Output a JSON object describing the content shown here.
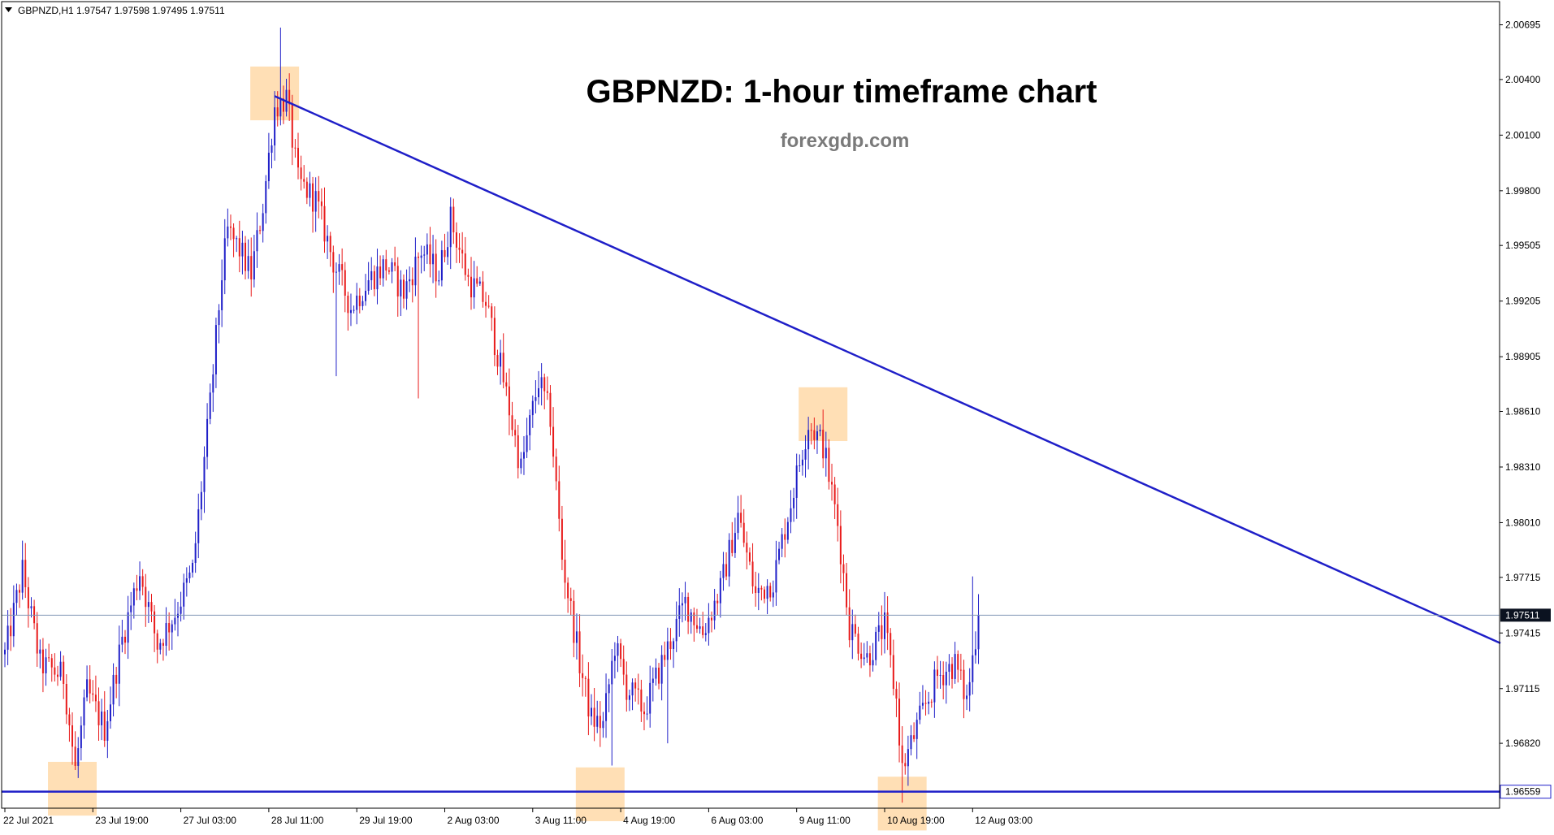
{
  "header": {
    "symbol_info": "GBPNZD,H1  1.97547 1.97598 1.97495 1.97511"
  },
  "overlay": {
    "title": "GBPNZD: 1-hour timeframe chart",
    "watermark": "forexgdp.com"
  },
  "colors": {
    "bull": "#1f1fc8",
    "bear": "#e81a1a",
    "trendline": "#1f1fc8",
    "support": "#1f1fc8",
    "highlight": "#ffd9a8",
    "current_price_line": "#7f96b4",
    "current_price_tag_bg": "#0b1220"
  },
  "chart_data": {
    "type": "candlestick",
    "symbol": "GBPNZD",
    "timeframe": "H1",
    "current_price": 1.97511,
    "current_price_label": "1.97511",
    "ylim": [
      1.9647,
      2.0082
    ],
    "y_ticks": [
      {
        "value": 2.00695,
        "label": "2.00695"
      },
      {
        "value": 2.004,
        "label": "2.00400"
      },
      {
        "value": 2.001,
        "label": "2.00100"
      },
      {
        "value": 1.998,
        "label": "1.99800"
      },
      {
        "value": 1.99505,
        "label": "1.99505"
      },
      {
        "value": 1.99205,
        "label": "1.99205"
      },
      {
        "value": 1.98905,
        "label": "1.98905"
      },
      {
        "value": 1.9861,
        "label": "1.98610"
      },
      {
        "value": 1.9831,
        "label": "1.98310"
      },
      {
        "value": 1.9801,
        "label": "1.98010"
      },
      {
        "value": 1.97715,
        "label": "1.97715"
      },
      {
        "value": 1.97415,
        "label": "1.97415"
      },
      {
        "value": 1.97115,
        "label": "1.97115"
      },
      {
        "value": 1.9682,
        "label": "1.96820"
      }
    ],
    "x_ticks": [
      {
        "bar": 0,
        "label": "22 Jul 2021"
      },
      {
        "bar": 30,
        "label": "23 Jul 19:00"
      },
      {
        "bar": 60,
        "label": "27 Jul 03:00"
      },
      {
        "bar": 90,
        "label": "28 Jul 11:00"
      },
      {
        "bar": 120,
        "label": "29 Jul 19:00"
      },
      {
        "bar": 150,
        "label": "2 Aug 03:00"
      },
      {
        "bar": 180,
        "label": "3 Aug 11:00"
      },
      {
        "bar": 210,
        "label": "4 Aug 19:00"
      },
      {
        "bar": 240,
        "label": "6 Aug 03:00"
      },
      {
        "bar": 270,
        "label": "9 Aug 11:00"
      },
      {
        "bar": 300,
        "label": "10 Aug 19:00"
      },
      {
        "bar": 330,
        "label": "12 Aug 03:00"
      }
    ],
    "anchors": [
      [
        0,
        1.973
      ],
      [
        6,
        1.9775
      ],
      [
        12,
        1.9725
      ],
      [
        20,
        1.9718
      ],
      [
        24,
        1.9668
      ],
      [
        28,
        1.971
      ],
      [
        34,
        1.969
      ],
      [
        40,
        1.9738
      ],
      [
        46,
        1.9775
      ],
      [
        52,
        1.9735
      ],
      [
        58,
        1.9752
      ],
      [
        64,
        1.9775
      ],
      [
        70,
        1.9865
      ],
      [
        74,
        1.9935
      ],
      [
        76,
        1.9958
      ],
      [
        80,
        1.9948
      ],
      [
        84,
        1.9935
      ],
      [
        88,
        1.9972
      ],
      [
        92,
        2.0025
      ],
      [
        96,
        2.003
      ],
      [
        100,
        1.9985
      ],
      [
        106,
        1.9975
      ],
      [
        112,
        1.9942
      ],
      [
        118,
        1.9917
      ],
      [
        124,
        1.9932
      ],
      [
        130,
        1.994
      ],
      [
        136,
        1.9925
      ],
      [
        142,
        1.9948
      ],
      [
        148,
        1.9935
      ],
      [
        152,
        1.9965
      ],
      [
        158,
        1.9932
      ],
      [
        164,
        1.992
      ],
      [
        170,
        1.9878
      ],
      [
        176,
        1.983
      ],
      [
        182,
        1.9878
      ],
      [
        186,
        1.9858
      ],
      [
        190,
        1.9782
      ],
      [
        196,
        1.9725
      ],
      [
        200,
        1.9695
      ],
      [
        204,
        1.9692
      ],
      [
        208,
        1.9735
      ],
      [
        212,
        1.9712
      ],
      [
        218,
        1.97
      ],
      [
        224,
        1.9725
      ],
      [
        232,
        1.9758
      ],
      [
        238,
        1.9742
      ],
      [
        244,
        1.9765
      ],
      [
        250,
        1.9805
      ],
      [
        256,
        1.9762
      ],
      [
        262,
        1.977
      ],
      [
        268,
        1.9812
      ],
      [
        274,
        1.9855
      ],
      [
        279,
        1.9843
      ],
      [
        284,
        1.98
      ],
      [
        288,
        1.9745
      ],
      [
        294,
        1.9728
      ],
      [
        300,
        1.9745
      ],
      [
        304,
        1.9705
      ],
      [
        306,
        1.9668
      ],
      [
        312,
        1.9695
      ],
      [
        318,
        1.9718
      ],
      [
        324,
        1.9725
      ],
      [
        328,
        1.9705
      ],
      [
        332,
        1.9751
      ]
    ],
    "trendline": {
      "start": {
        "bar": 92,
        "price": 2.0031
      },
      "end": {
        "bar": 510,
        "price": 1.9736
      }
    },
    "support_level": {
      "price": 1.96559,
      "label": "1.96559"
    },
    "highlights": [
      {
        "name": "swing-high-1",
        "bar_center": 92,
        "price_low": 2.0018,
        "price_high": 2.0047
      },
      {
        "name": "swing-high-2",
        "bar_center": 279,
        "price_low": 1.9845,
        "price_high": 1.9874
      },
      {
        "name": "swing-low-1",
        "bar_center": 23,
        "price_low": 1.9643,
        "price_high": 1.9672
      },
      {
        "name": "swing-low-2",
        "bar_center": 203,
        "price_low": 1.964,
        "price_high": 1.9669
      },
      {
        "name": "swing-low-3",
        "bar_center": 306,
        "price_low": 1.9635,
        "price_high": 1.9664
      }
    ]
  }
}
